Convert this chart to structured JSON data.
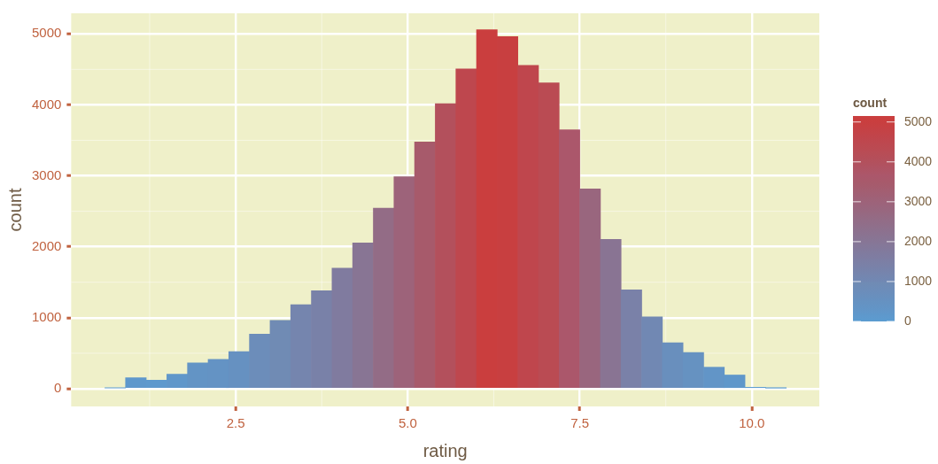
{
  "chart_data": {
    "type": "histogram",
    "xlabel": "rating",
    "ylabel": "count",
    "clabel": "count",
    "bins": [
      0.6,
      0.9,
      1.2,
      1.5,
      1.8,
      2.1,
      2.4,
      2.7,
      3.0,
      3.3,
      3.6,
      3.9,
      4.2,
      4.5,
      4.8,
      5.1,
      5.4,
      5.7,
      6.0,
      6.3,
      6.6,
      6.9,
      7.2,
      7.5,
      7.8,
      8.1,
      8.4,
      8.7,
      9.0,
      9.3,
      9.6,
      9.9,
      10.2,
      10.5
    ],
    "values": [
      10,
      156,
      119,
      205,
      364,
      413,
      523,
      768,
      964,
      1185,
      1381,
      1700,
      2055,
      2545,
      2987,
      3477,
      4016,
      4506,
      5058,
      4960,
      4555,
      4310,
      3648,
      2815,
      2104,
      1393,
      1013,
      646,
      511,
      303,
      193,
      20,
      8
    ],
    "colors": [
      "#5b9bd0",
      "#5e98cc",
      "#5e99cd",
      "#6097ca",
      "#6394c5",
      "#6493c4",
      "#6691c1",
      "#6c8dba",
      "#708bb4",
      "#7585ae",
      "#7981a8",
      "#807b9f",
      "#887594",
      "#936c86",
      "#9d637a",
      "#a75a6b",
      "#b3505c",
      "#be474e",
      "#ca3e3e",
      "#c83f40",
      "#bf464d",
      "#ba4b53",
      "#ab576b",
      "#99667e",
      "#897493",
      "#7a81a8",
      "#7188b3",
      "#698fbd",
      "#6692c1",
      "#6295c7",
      "#5f97ca",
      "#5b9bd0",
      "#5b9bd0"
    ],
    "xlim": [
      0.11,
      10.98
    ],
    "xticks": [
      {
        "value": 2.5,
        "label": "2.5"
      },
      {
        "value": 5,
        "label": "5.0"
      },
      {
        "value": 7.5,
        "label": "7.5"
      },
      {
        "value": 10,
        "label": "10.0"
      }
    ],
    "ylim": [
      -250,
      5290
    ],
    "yticks": [
      0,
      1000,
      2000,
      3000,
      4000,
      5000
    ],
    "clim": [
      0,
      5150
    ],
    "cticks": [
      0,
      1000,
      2000,
      3000,
      4000,
      5000
    ],
    "grid": true,
    "legend": false
  }
}
